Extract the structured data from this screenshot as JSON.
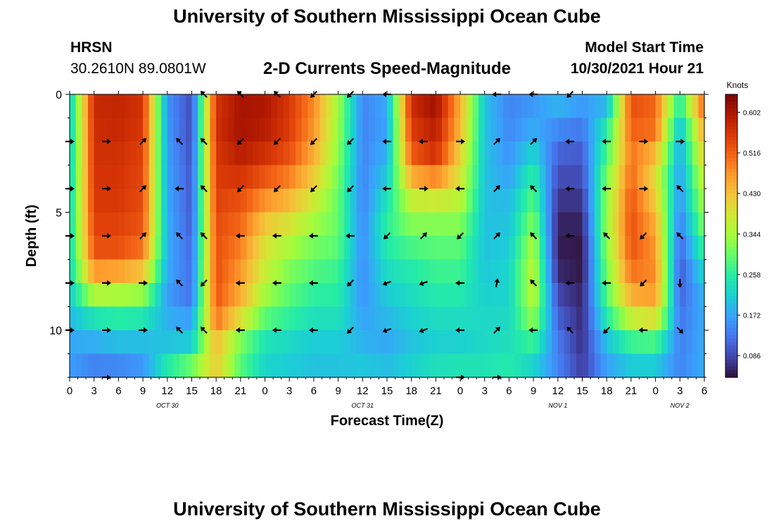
{
  "header": {
    "title": "University of Southern Mississippi Ocean Cube",
    "station": "HRSN",
    "coordinates": "30.2610N  89.0801W",
    "subtitle": "2-D Currents Speed-Magnitude",
    "model_start_label": "Model Start Time",
    "model_start_value": "10/30/2021 Hour 21"
  },
  "footer": {
    "title": "University of Southern Mississippi Ocean Cube"
  },
  "chart_data": {
    "type": "heatmap",
    "title": "2-D Currents Speed-Magnitude",
    "xlabel": "Forecast Time(Z)",
    "ylabel": "Depth (ft)",
    "x_tick_labels": [
      "0",
      "3",
      "6",
      "9",
      "12",
      "15",
      "18",
      "21",
      "0",
      "3",
      "6",
      "9",
      "12",
      "15",
      "18",
      "21",
      "0",
      "3",
      "6",
      "9",
      "12",
      "15",
      "18",
      "21",
      "0",
      "3",
      "6"
    ],
    "day_labels": [
      {
        "label": "OCT 30",
        "hour_index": 12
      },
      {
        "label": "OCT 31",
        "hour_index": 36
      },
      {
        "label": "NOV 1",
        "hour_index": 60
      },
      {
        "label": "NOV 2",
        "hour_index": 75
      }
    ],
    "y_ticks": [
      0,
      5,
      10
    ],
    "ylim": [
      0,
      12
    ],
    "xlim_hours": [
      0,
      78
    ],
    "colorbar": {
      "label": "Knots",
      "min": 0.04,
      "max": 0.64,
      "tick_values": [
        0.602,
        0.516,
        0.43,
        0.344,
        0.258,
        0.172,
        0.086
      ],
      "tick_labels": [
        "0.602",
        "0.516",
        "0.430",
        "0.344",
        "0.258",
        "0.172",
        "0.086"
      ]
    },
    "depths_ft": [
      0,
      1,
      2,
      3,
      4,
      5,
      6,
      7,
      8,
      9,
      10,
      11,
      12
    ],
    "time_hours": [
      0,
      3,
      6,
      9,
      12,
      15,
      18,
      21,
      24,
      27,
      30,
      33,
      36,
      39,
      42,
      45,
      48,
      51,
      54,
      57,
      60,
      63,
      66,
      69,
      72,
      75,
      78
    ],
    "speed_knots": [
      [
        0.2,
        0.58,
        0.58,
        0.56,
        0.15,
        0.09,
        0.55,
        0.6,
        0.6,
        0.55,
        0.48,
        0.34,
        0.14,
        0.18,
        0.58,
        0.62,
        0.45,
        0.2,
        0.14,
        0.16,
        0.2,
        0.17,
        0.14,
        0.53,
        0.5,
        0.28,
        0.55
      ],
      [
        0.2,
        0.57,
        0.58,
        0.56,
        0.16,
        0.09,
        0.57,
        0.61,
        0.6,
        0.56,
        0.48,
        0.34,
        0.14,
        0.17,
        0.56,
        0.6,
        0.45,
        0.2,
        0.14,
        0.16,
        0.17,
        0.15,
        0.24,
        0.53,
        0.52,
        0.2,
        0.48
      ],
      [
        0.2,
        0.57,
        0.57,
        0.55,
        0.16,
        0.09,
        0.56,
        0.6,
        0.58,
        0.54,
        0.46,
        0.33,
        0.14,
        0.17,
        0.54,
        0.58,
        0.43,
        0.2,
        0.15,
        0.2,
        0.12,
        0.11,
        0.26,
        0.5,
        0.48,
        0.18,
        0.44
      ],
      [
        0.21,
        0.56,
        0.56,
        0.54,
        0.17,
        0.1,
        0.55,
        0.58,
        0.55,
        0.52,
        0.44,
        0.32,
        0.14,
        0.2,
        0.5,
        0.55,
        0.4,
        0.2,
        0.16,
        0.24,
        0.1,
        0.1,
        0.3,
        0.5,
        0.4,
        0.16,
        0.4
      ],
      [
        0.21,
        0.56,
        0.56,
        0.54,
        0.17,
        0.1,
        0.55,
        0.54,
        0.5,
        0.46,
        0.4,
        0.3,
        0.14,
        0.22,
        0.4,
        0.42,
        0.38,
        0.2,
        0.18,
        0.28,
        0.08,
        0.08,
        0.32,
        0.52,
        0.4,
        0.16,
        0.36
      ],
      [
        0.22,
        0.55,
        0.55,
        0.53,
        0.18,
        0.1,
        0.54,
        0.52,
        0.45,
        0.42,
        0.36,
        0.3,
        0.14,
        0.26,
        0.34,
        0.34,
        0.34,
        0.2,
        0.2,
        0.3,
        0.06,
        0.06,
        0.34,
        0.53,
        0.44,
        0.14,
        0.34
      ],
      [
        0.22,
        0.54,
        0.54,
        0.52,
        0.18,
        0.11,
        0.53,
        0.5,
        0.4,
        0.36,
        0.32,
        0.3,
        0.15,
        0.26,
        0.3,
        0.3,
        0.3,
        0.2,
        0.2,
        0.34,
        0.05,
        0.05,
        0.33,
        0.53,
        0.46,
        0.12,
        0.3
      ],
      [
        0.22,
        0.52,
        0.52,
        0.48,
        0.18,
        0.12,
        0.53,
        0.48,
        0.38,
        0.33,
        0.3,
        0.28,
        0.15,
        0.24,
        0.26,
        0.28,
        0.28,
        0.2,
        0.22,
        0.36,
        0.05,
        0.04,
        0.32,
        0.52,
        0.48,
        0.1,
        0.25
      ],
      [
        0.22,
        0.42,
        0.4,
        0.38,
        0.17,
        0.12,
        0.53,
        0.46,
        0.36,
        0.3,
        0.27,
        0.26,
        0.15,
        0.22,
        0.24,
        0.26,
        0.26,
        0.21,
        0.22,
        0.37,
        0.07,
        0.05,
        0.3,
        0.48,
        0.48,
        0.1,
        0.2
      ],
      [
        0.2,
        0.28,
        0.29,
        0.28,
        0.16,
        0.13,
        0.52,
        0.44,
        0.32,
        0.28,
        0.25,
        0.25,
        0.16,
        0.2,
        0.22,
        0.24,
        0.24,
        0.22,
        0.22,
        0.36,
        0.1,
        0.06,
        0.28,
        0.42,
        0.45,
        0.12,
        0.18
      ],
      [
        0.18,
        0.2,
        0.22,
        0.21,
        0.2,
        0.2,
        0.48,
        0.35,
        0.26,
        0.24,
        0.22,
        0.22,
        0.18,
        0.18,
        0.21,
        0.22,
        0.22,
        0.23,
        0.23,
        0.3,
        0.12,
        0.06,
        0.22,
        0.32,
        0.34,
        0.13,
        0.18
      ],
      [
        0.17,
        0.16,
        0.17,
        0.18,
        0.2,
        0.22,
        0.4,
        0.28,
        0.22,
        0.21,
        0.2,
        0.2,
        0.19,
        0.17,
        0.19,
        0.21,
        0.21,
        0.22,
        0.24,
        0.24,
        0.14,
        0.07,
        0.18,
        0.22,
        0.22,
        0.14,
        0.18
      ],
      [
        0.16,
        0.12,
        0.12,
        0.14,
        0.3,
        0.38,
        0.44,
        0.3,
        0.22,
        0.21,
        0.2,
        0.2,
        0.22,
        0.22,
        0.24,
        0.26,
        0.27,
        0.26,
        0.26,
        0.2,
        0.14,
        0.08,
        0.16,
        0.2,
        0.2,
        0.14,
        0.18
      ]
    ],
    "arrow_depths_ft": [
      0,
      2,
      4,
      6,
      8,
      10,
      12
    ],
    "arrow_hours": [
      0,
      4.5,
      9,
      13.5,
      16.5,
      21,
      25.5,
      30,
      34.5,
      39,
      43.5,
      48,
      52.5,
      57,
      61.5,
      66,
      70.5,
      75
    ],
    "arrow_directions_deg": [
      [
        null,
        null,
        null,
        null,
        135,
        135,
        135,
        225,
        225,
        180,
        null,
        null,
        180,
        180,
        225,
        null,
        null,
        null
      ],
      [
        0,
        0,
        45,
        135,
        135,
        225,
        225,
        225,
        225,
        180,
        180,
        0,
        45,
        45,
        180,
        180,
        0,
        0
      ],
      [
        0,
        0,
        45,
        180,
        135,
        225,
        225,
        225,
        225,
        180,
        0,
        180,
        45,
        135,
        180,
        180,
        0,
        135
      ],
      [
        0,
        0,
        45,
        135,
        135,
        180,
        180,
        180,
        180,
        225,
        45,
        225,
        45,
        135,
        180,
        135,
        225,
        135
      ],
      [
        0,
        0,
        0,
        135,
        225,
        180,
        180,
        180,
        225,
        200,
        200,
        180,
        80,
        135,
        180,
        180,
        225,
        270
      ],
      [
        0,
        0,
        0,
        135,
        135,
        180,
        180,
        180,
        225,
        200,
        200,
        180,
        45,
        180,
        135,
        225,
        180,
        315
      ],
      [
        0,
        0,
        0,
        0,
        0,
        0,
        0,
        0,
        0,
        0,
        0,
        0,
        0,
        0,
        0,
        0,
        0,
        0
      ]
    ],
    "arrows_shown": [
      [
        false,
        false,
        false,
        false,
        true,
        true,
        true,
        true,
        true,
        true,
        false,
        false,
        true,
        true,
        true,
        false,
        false,
        false
      ],
      [
        true,
        true,
        true,
        true,
        true,
        true,
        true,
        true,
        true,
        true,
        true,
        true,
        true,
        true,
        true,
        true,
        true,
        true
      ],
      [
        true,
        true,
        true,
        true,
        true,
        true,
        true,
        true,
        true,
        true,
        true,
        true,
        true,
        true,
        true,
        true,
        true,
        true
      ],
      [
        true,
        true,
        true,
        true,
        true,
        true,
        true,
        true,
        true,
        true,
        true,
        true,
        true,
        true,
        true,
        true,
        true,
        true
      ],
      [
        true,
        true,
        true,
        true,
        true,
        true,
        true,
        true,
        true,
        true,
        true,
        true,
        true,
        true,
        true,
        true,
        true,
        true
      ],
      [
        true,
        true,
        true,
        true,
        true,
        true,
        true,
        true,
        true,
        true,
        true,
        true,
        true,
        true,
        true,
        true,
        true,
        true
      ],
      [
        false,
        true,
        false,
        false,
        false,
        false,
        false,
        false,
        false,
        false,
        false,
        true,
        true,
        false,
        false,
        false,
        false,
        false
      ]
    ],
    "colorscale": [
      "#30123b",
      "#4145ab",
      "#4675ed",
      "#39a2fc",
      "#1bcfd4",
      "#24eca6",
      "#61fc6c",
      "#a4fc3b",
      "#d1e834",
      "#f3c63a",
      "#fe9b2d",
      "#f36315",
      "#d93806",
      "#b11901",
      "#7a0402"
    ]
  }
}
